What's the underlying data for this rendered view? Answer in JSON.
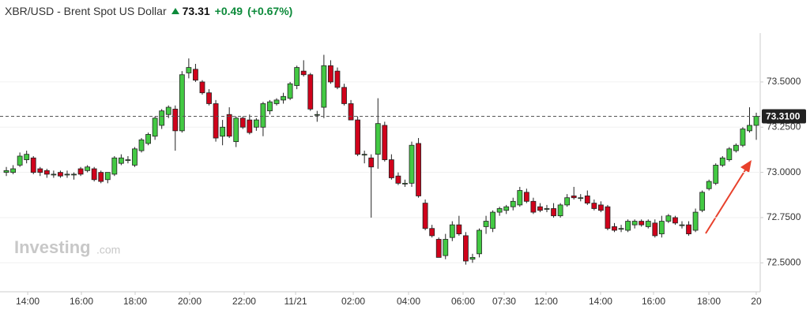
{
  "header": {
    "symbol": "XBR/USD - Brent Spot US Dollar",
    "price": "73.31",
    "change": "+0.49",
    "change_pct": "(+0.67%)"
  },
  "watermark": {
    "brand": "Investing",
    "suffix": ".com"
  },
  "chart_data": {
    "type": "candlestick",
    "up_color": "#43c943",
    "down_color": "#d0021b",
    "grid": true,
    "ylim": [
      72.34,
      73.77
    ],
    "yticks": [
      {
        "value": 72.5,
        "label": "72.5000"
      },
      {
        "value": 72.75,
        "label": "72.7500"
      },
      {
        "value": 73,
        "label": "73.0000"
      },
      {
        "value": 73.25,
        "label": "73.2500"
      },
      {
        "value": 73.5,
        "label": "73.5000"
      }
    ],
    "last_price": {
      "value": 73.31,
      "label": "73.3100"
    },
    "xlim": [
      -0.94,
      111.58
    ],
    "xticks": [
      {
        "value": 3.16,
        "label": "14:00"
      },
      {
        "value": 11.11,
        "label": "16:00"
      },
      {
        "value": 19.06,
        "label": "18:00"
      },
      {
        "value": 27.13,
        "label": "20:00"
      },
      {
        "value": 35.2,
        "label": "22:00"
      },
      {
        "value": 42.81,
        "label": "11/21"
      },
      {
        "value": 51.35,
        "label": "02:00"
      },
      {
        "value": 59.53,
        "label": "04:00"
      },
      {
        "value": 67.6,
        "label": "06:00"
      },
      {
        "value": 73.68,
        "label": "07:30"
      },
      {
        "value": 79.88,
        "label": "12:00"
      },
      {
        "value": 87.95,
        "label": "14:00"
      },
      {
        "value": 95.79,
        "label": "16:00"
      },
      {
        "value": 103.98,
        "label": "18:00"
      },
      {
        "value": 110.99,
        "label": "20"
      }
    ],
    "ohlc": [
      [
        73.0,
        73.03,
        72.98,
        73.01
      ],
      [
        73.0,
        73.04,
        72.99,
        73.02
      ],
      [
        73.04,
        73.11,
        73.03,
        73.09
      ],
      [
        73.07,
        73.12,
        73.05,
        73.1
      ],
      [
        73.08,
        73.09,
        72.99,
        73.0
      ],
      [
        73.02,
        73.03,
        72.98,
        73.0
      ],
      [
        73.01,
        73.02,
        72.97,
        72.99
      ],
      [
        72.99,
        73.01,
        72.97,
        72.99
      ],
      [
        73.0,
        73.01,
        72.97,
        72.98
      ],
      [
        72.99,
        73.01,
        72.97,
        72.99
      ],
      [
        72.99,
        73.0,
        72.96,
        72.99
      ],
      [
        73.02,
        73.03,
        72.98,
        72.99
      ],
      [
        73.01,
        73.04,
        73.0,
        73.03
      ],
      [
        73.02,
        73.03,
        72.95,
        72.96
      ],
      [
        73.0,
        73.01,
        72.94,
        72.95
      ],
      [
        72.96,
        73.0,
        72.94,
        73.0
      ],
      [
        72.99,
        73.09,
        72.98,
        73.08
      ],
      [
        73.05,
        73.1,
        73.04,
        73.08
      ],
      [
        73.07,
        73.09,
        73.05,
        73.07
      ],
      [
        73.04,
        73.14,
        73.03,
        73.13
      ],
      [
        73.12,
        73.19,
        73.11,
        73.18
      ],
      [
        73.16,
        73.22,
        73.15,
        73.21
      ],
      [
        73.2,
        73.31,
        73.18,
        73.3
      ],
      [
        73.26,
        73.35,
        73.24,
        73.34
      ],
      [
        73.32,
        73.37,
        73.3,
        73.36
      ],
      [
        73.35,
        73.37,
        73.12,
        73.23
      ],
      [
        73.23,
        73.56,
        73.22,
        73.54
      ],
      [
        73.55,
        73.63,
        73.52,
        73.58
      ],
      [
        73.57,
        73.6,
        73.5,
        73.51
      ],
      [
        73.5,
        73.51,
        73.43,
        73.44
      ],
      [
        73.44,
        73.46,
        73.37,
        73.38
      ],
      [
        73.38,
        73.4,
        73.17,
        73.19
      ],
      [
        73.2,
        73.29,
        73.15,
        73.25
      ],
      [
        73.32,
        73.36,
        73.19,
        73.2
      ],
      [
        73.17,
        73.31,
        73.14,
        73.3
      ],
      [
        73.3,
        73.31,
        73.24,
        73.25
      ],
      [
        73.29,
        73.32,
        73.21,
        73.22
      ],
      [
        73.25,
        73.3,
        73.23,
        73.29
      ],
      [
        73.25,
        73.39,
        73.2,
        73.38
      ],
      [
        73.34,
        73.4,
        73.32,
        73.39
      ],
      [
        73.38,
        73.41,
        73.37,
        73.4
      ],
      [
        73.4,
        73.44,
        73.38,
        73.42
      ],
      [
        73.41,
        73.5,
        73.4,
        73.49
      ],
      [
        73.48,
        73.59,
        73.46,
        73.58
      ],
      [
        73.56,
        73.62,
        73.53,
        73.54
      ],
      [
        73.54,
        73.55,
        73.34,
        73.35
      ],
      [
        73.32,
        73.34,
        73.28,
        73.32
      ],
      [
        73.36,
        73.65,
        73.3,
        73.59
      ],
      [
        73.59,
        73.62,
        73.49,
        73.5
      ],
      [
        73.56,
        73.58,
        73.46,
        73.47
      ],
      [
        73.47,
        73.49,
        73.37,
        73.38
      ],
      [
        73.38,
        73.4,
        73.29,
        73.29
      ],
      [
        73.29,
        73.31,
        73.09,
        73.1
      ],
      [
        73.1,
        73.12,
        73.05,
        73.1
      ],
      [
        73.08,
        73.1,
        72.75,
        73.03
      ],
      [
        73.1,
        73.41,
        73.02,
        73.27
      ],
      [
        73.26,
        73.28,
        73.06,
        73.07
      ],
      [
        73.07,
        73.1,
        72.96,
        72.97
      ],
      [
        72.98,
        73.0,
        72.93,
        72.94
      ],
      [
        72.94,
        72.96,
        72.92,
        72.94
      ],
      [
        72.94,
        73.17,
        72.92,
        73.15
      ],
      [
        73.16,
        73.19,
        72.86,
        72.87
      ],
      [
        72.83,
        72.85,
        72.68,
        72.69
      ],
      [
        72.69,
        72.71,
        72.64,
        72.65
      ],
      [
        72.63,
        72.64,
        72.53,
        72.53
      ],
      [
        72.54,
        72.66,
        72.52,
        72.63
      ],
      [
        72.64,
        72.73,
        72.62,
        72.71
      ],
      [
        72.71,
        72.76,
        72.65,
        72.66
      ],
      [
        72.65,
        72.67,
        72.49,
        72.51
      ],
      [
        72.52,
        72.55,
        72.5,
        72.53
      ],
      [
        72.55,
        72.69,
        72.53,
        72.68
      ],
      [
        72.7,
        72.76,
        72.66,
        72.73
      ],
      [
        72.69,
        72.79,
        72.67,
        72.78
      ],
      [
        72.78,
        72.81,
        72.76,
        72.8
      ],
      [
        72.79,
        72.82,
        72.77,
        72.81
      ],
      [
        72.81,
        72.86,
        72.79,
        72.84
      ],
      [
        72.82,
        72.92,
        72.81,
        72.9
      ],
      [
        72.89,
        72.91,
        72.83,
        72.84
      ],
      [
        72.84,
        72.86,
        72.77,
        72.78
      ],
      [
        72.81,
        72.83,
        72.78,
        72.79
      ],
      [
        72.8,
        72.82,
        72.78,
        72.8
      ],
      [
        72.8,
        72.83,
        72.75,
        72.76
      ],
      [
        72.76,
        72.83,
        72.75,
        72.82
      ],
      [
        72.82,
        72.88,
        72.81,
        72.86
      ],
      [
        72.87,
        72.92,
        72.85,
        72.86
      ],
      [
        72.86,
        72.88,
        72.84,
        72.86
      ],
      [
        72.87,
        72.9,
        72.82,
        72.83
      ],
      [
        72.83,
        72.85,
        72.79,
        72.8
      ],
      [
        72.82,
        72.84,
        72.78,
        72.79
      ],
      [
        72.81,
        72.82,
        72.68,
        72.69
      ],
      [
        72.7,
        72.72,
        72.67,
        72.68
      ],
      [
        72.69,
        72.71,
        72.67,
        72.69
      ],
      [
        72.68,
        72.74,
        72.67,
        72.73
      ],
      [
        72.71,
        72.74,
        72.69,
        72.73
      ],
      [
        72.73,
        72.74,
        72.7,
        72.71
      ],
      [
        72.7,
        72.74,
        72.69,
        72.73
      ],
      [
        72.72,
        72.74,
        72.64,
        72.65
      ],
      [
        72.66,
        72.76,
        72.64,
        72.73
      ],
      [
        72.73,
        72.77,
        72.72,
        72.76
      ],
      [
        72.75,
        72.76,
        72.71,
        72.72
      ],
      [
        72.71,
        72.73,
        72.69,
        72.71
      ],
      [
        72.71,
        72.73,
        72.65,
        72.66
      ],
      [
        72.68,
        72.8,
        72.67,
        72.78
      ],
      [
        72.79,
        72.9,
        72.78,
        72.89
      ],
      [
        72.91,
        72.96,
        72.9,
        72.95
      ],
      [
        72.94,
        73.05,
        72.93,
        73.04
      ],
      [
        73.04,
        73.09,
        73.03,
        73.08
      ],
      [
        73.07,
        73.14,
        73.06,
        73.13
      ],
      [
        73.12,
        73.16,
        73.11,
        73.15
      ],
      [
        73.15,
        73.25,
        73.14,
        73.24
      ],
      [
        73.23,
        73.36,
        73.22,
        73.26
      ],
      [
        73.26,
        73.33,
        73.18,
        73.31
      ]
    ]
  }
}
